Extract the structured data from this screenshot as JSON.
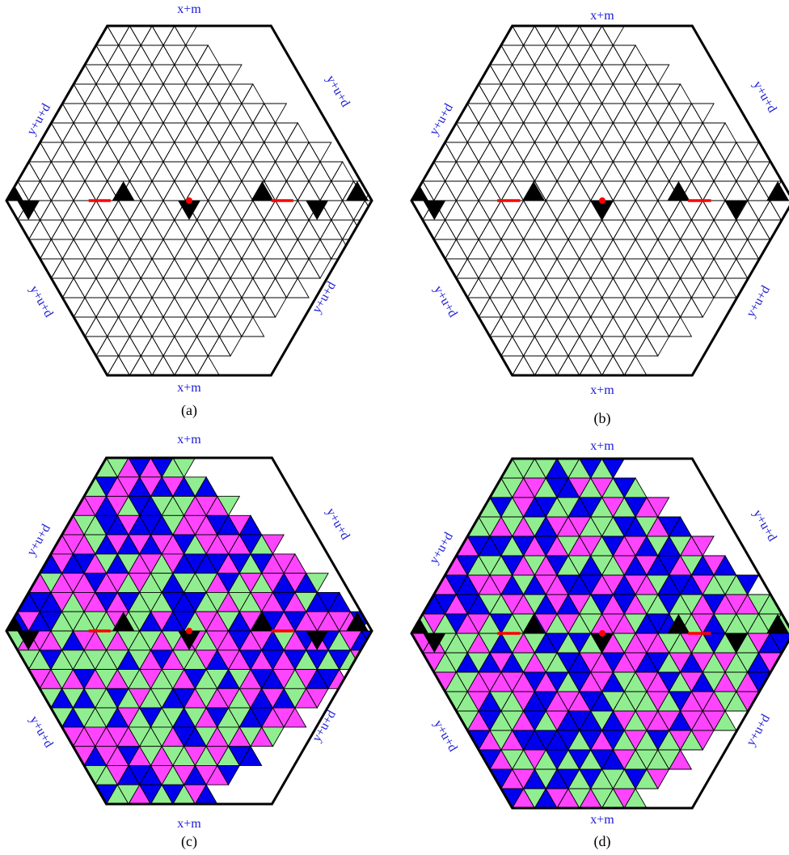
{
  "colors": {
    "outline": "#000000",
    "grid": "#000000",
    "label": "#1a1ad6",
    "caption": "#000000",
    "marker": "#ff0000",
    "tile_green": "#90ee90",
    "tile_pink": "#ff44ff",
    "tile_blue": "#0000ee",
    "hole": "#000000"
  },
  "panels": [
    {
      "id": "a",
      "caption": "(a)",
      "mode": "grid",
      "labels": {
        "top": "x+m",
        "bottom": "x+m",
        "upper_left": "y+u+d",
        "upper_right": "y+u+d",
        "lower_left": "y+u+d",
        "lower_right": "y+u+d"
      }
    },
    {
      "id": "b",
      "caption": "(b)",
      "mode": "grid",
      "labels": {
        "top": "x+m",
        "bottom": "x+m",
        "upper_left": "y+u+d",
        "upper_right": "y+u+d",
        "lower_left": "y+u+d",
        "lower_right": "y+u+d"
      }
    },
    {
      "id": "c",
      "caption": "(c)",
      "mode": "tiling",
      "labels": {
        "top": "x+m",
        "bottom": "x+m",
        "upper_left": "y+u+d",
        "upper_right": "y+u+d",
        "lower_left": "y+u+d",
        "lower_right": "y+u+d"
      }
    },
    {
      "id": "d",
      "caption": "(d)",
      "mode": "tiling",
      "labels": {
        "top": "x+m",
        "bottom": "x+m",
        "upper_left": "y+u+d",
        "upper_right": "y+u+d",
        "lower_left": "y+u+d",
        "lower_right": "y+u+d"
      }
    }
  ]
}
